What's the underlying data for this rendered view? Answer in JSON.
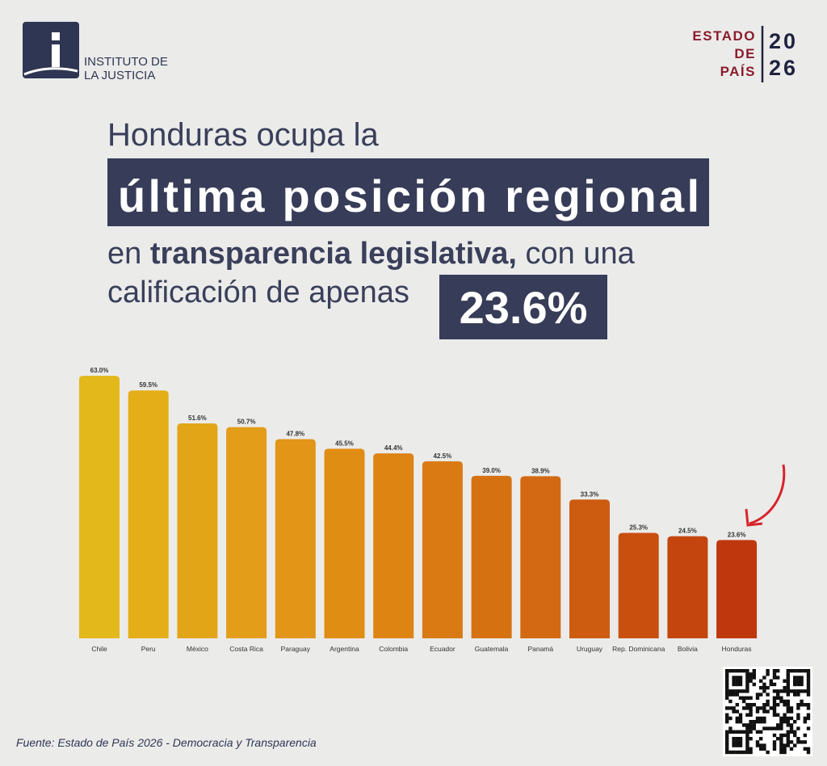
{
  "header": {
    "logo_line1": "INSTITUTO DE",
    "logo_line2": "LA JUSTICIA",
    "brand_word1": "ESTADO",
    "brand_word2": "DE",
    "brand_word3": "PAÍS",
    "brand_year1": "20",
    "brand_year2": "26"
  },
  "headline": {
    "line1": "Honduras ocupa la",
    "highlight": "última posición regional",
    "line3_start": "en",
    "line3_bold": "transparencia legislativa,",
    "line3_end": "con una",
    "line4": "calificación de apenas",
    "score": "23.6%"
  },
  "chart_data": {
    "type": "bar",
    "categories": [
      "Chile",
      "Peru",
      "México",
      "Costa Rica",
      "Paraguay",
      "Argentina",
      "Colombia",
      "Ecuador",
      "Guatemala",
      "Panamá",
      "Uruguay",
      "Rep. Dominicana",
      "Bolivia",
      "Honduras"
    ],
    "values": [
      63.0,
      59.5,
      51.6,
      50.7,
      47.8,
      45.5,
      44.4,
      42.5,
      39.0,
      38.9,
      33.3,
      25.3,
      24.5,
      23.6
    ],
    "value_labels": [
      "63.0%",
      "59.5%",
      "51.6%",
      "50.7%",
      "47.8%",
      "45.5%",
      "44.4%",
      "42.5%",
      "39.0%",
      "38.9%",
      "33.3%",
      "25.3%",
      "24.5%",
      "23.6%"
    ],
    "colors": [
      "#e3b81a",
      "#e3ae18",
      "#e3a518",
      "#e39d18",
      "#e29516",
      "#e08d14",
      "#dd8413",
      "#d97b12",
      "#d67112",
      "#d36912",
      "#cd5c10",
      "#c94f0f",
      "#c4450d",
      "#bf370c"
    ],
    "ylim": [
      0,
      64
    ]
  },
  "source": "Fuente: Estado de País 2026 - Democracia y Transparencia"
}
